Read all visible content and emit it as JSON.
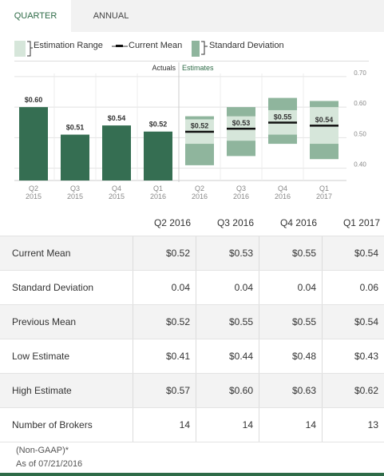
{
  "tabs": {
    "quarter": "QUARTER",
    "annual": "ANNUAL"
  },
  "legend": {
    "estimation_range": "Estimation Range",
    "current_mean": "Current Mean",
    "standard_deviation": "Standard Deviation"
  },
  "colors": {
    "actual_bar": "#356e52",
    "range_light": "#d6e6da",
    "deviation": "#8fb59d",
    "mean_line": "#111111",
    "accent": "#2e6b47"
  },
  "chart_data": {
    "type": "bar",
    "section_labels": {
      "actuals": "Actuals",
      "estimates": "Estimates"
    },
    "ylim": [
      0.36,
      0.71
    ],
    "y_ticks": [
      "0.70",
      "0.60",
      "0.50",
      "0.40"
    ],
    "y_tick_values": [
      0.7,
      0.6,
      0.5,
      0.4
    ],
    "gridlines": true,
    "actuals": [
      {
        "quarter": "Q2",
        "year": "2015",
        "value": 0.6,
        "label": "$0.60"
      },
      {
        "quarter": "Q3",
        "year": "2015",
        "value": 0.51,
        "label": "$0.51"
      },
      {
        "quarter": "Q4",
        "year": "2015",
        "value": 0.54,
        "label": "$0.54"
      },
      {
        "quarter": "Q1",
        "year": "2016",
        "value": 0.52,
        "label": "$0.52"
      }
    ],
    "estimates": [
      {
        "quarter": "Q2",
        "year": "2016",
        "mean": 0.52,
        "label": "$0.52",
        "low": 0.41,
        "high": 0.57,
        "std": 0.04
      },
      {
        "quarter": "Q3",
        "year": "2016",
        "mean": 0.53,
        "label": "$0.53",
        "low": 0.44,
        "high": 0.6,
        "std": 0.04
      },
      {
        "quarter": "Q4",
        "year": "2016",
        "mean": 0.55,
        "label": "$0.55",
        "low": 0.48,
        "high": 0.63,
        "std": 0.04
      },
      {
        "quarter": "Q1",
        "year": "2017",
        "mean": 0.54,
        "label": "$0.54",
        "low": 0.43,
        "high": 0.62,
        "std": 0.06
      }
    ]
  },
  "table": {
    "columns": [
      "Q2 2016",
      "Q3 2016",
      "Q4 2016",
      "Q1 2017"
    ],
    "rows": [
      {
        "label": "Current Mean",
        "values": [
          "$0.52",
          "$0.53",
          "$0.55",
          "$0.54"
        ]
      },
      {
        "label": "Standard Deviation",
        "values": [
          "0.04",
          "0.04",
          "0.04",
          "0.06"
        ]
      },
      {
        "label": "Previous Mean",
        "values": [
          "$0.52",
          "$0.55",
          "$0.55",
          "$0.54"
        ]
      },
      {
        "label": "Low Estimate",
        "values": [
          "$0.41",
          "$0.44",
          "$0.48",
          "$0.43"
        ]
      },
      {
        "label": "High Estimate",
        "values": [
          "$0.57",
          "$0.60",
          "$0.63",
          "$0.62"
        ]
      },
      {
        "label": "Number of Brokers",
        "values": [
          "14",
          "14",
          "14",
          "13"
        ]
      }
    ]
  },
  "footnote": {
    "note": "(Non-GAAP)*",
    "as_of": "As of 07/21/2016"
  }
}
